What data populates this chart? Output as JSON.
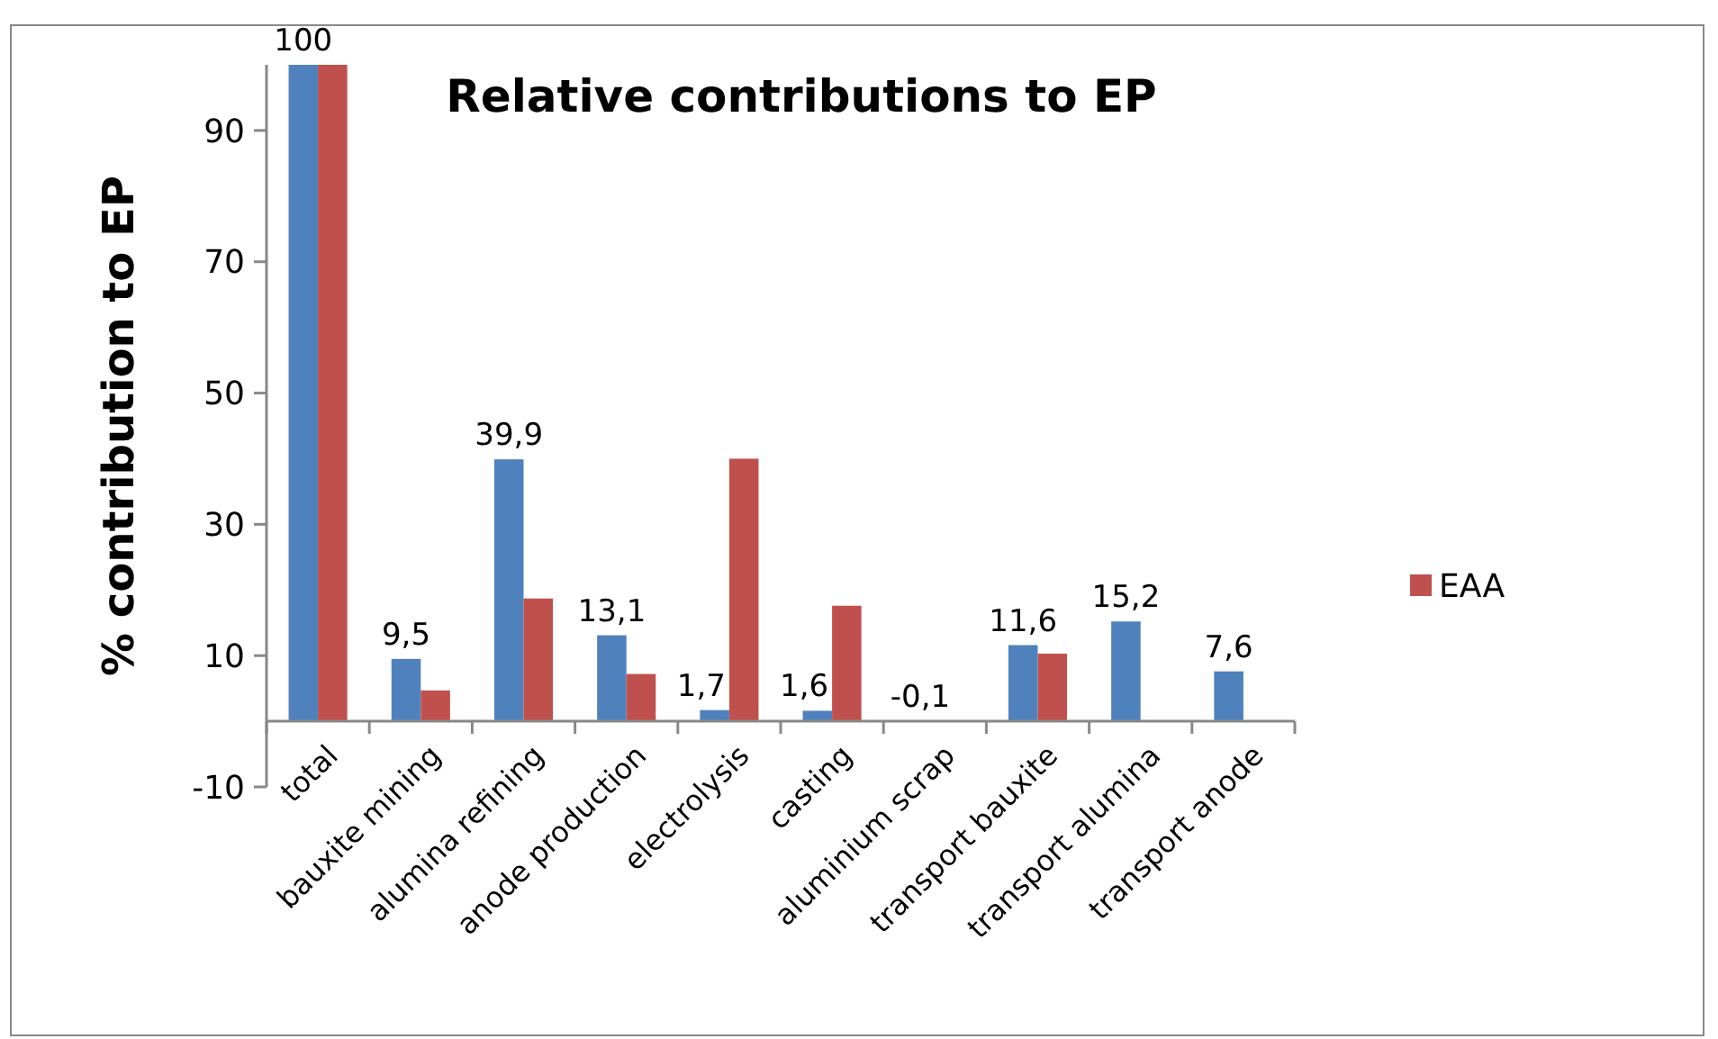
{
  "chart_data": {
    "type": "bar",
    "title": "Relative contributions to EP",
    "ylabel": "% contribution to EP",
    "categories": [
      "total",
      "bauxite mining",
      "alumina refining",
      "anode production",
      "electrolysis",
      "casting",
      "aluminium scrap",
      "transport bauxite",
      "transport alumina",
      "transport anode"
    ],
    "series": [
      {
        "color": "#4f81bd",
        "values": [
          100,
          9.5,
          39.9,
          13.1,
          1.7,
          1.6,
          -0.1,
          11.6,
          15.2,
          7.6
        ],
        "value_labels": [
          "100",
          "9,5",
          "39,9",
          "13,1",
          "1,7",
          "1,6",
          "-0,1",
          "11,6",
          "15,2",
          "7,6"
        ]
      },
      {
        "name": "EAA",
        "color": "#c0504d",
        "values": [
          100,
          4.7,
          18.7,
          7.2,
          40,
          17.6,
          null,
          10.3,
          null,
          null
        ]
      }
    ],
    "ylim": [
      -10,
      100
    ],
    "yticks": [
      -10,
      10,
      30,
      50,
      70,
      90
    ],
    "grid": false,
    "legend": "right"
  }
}
